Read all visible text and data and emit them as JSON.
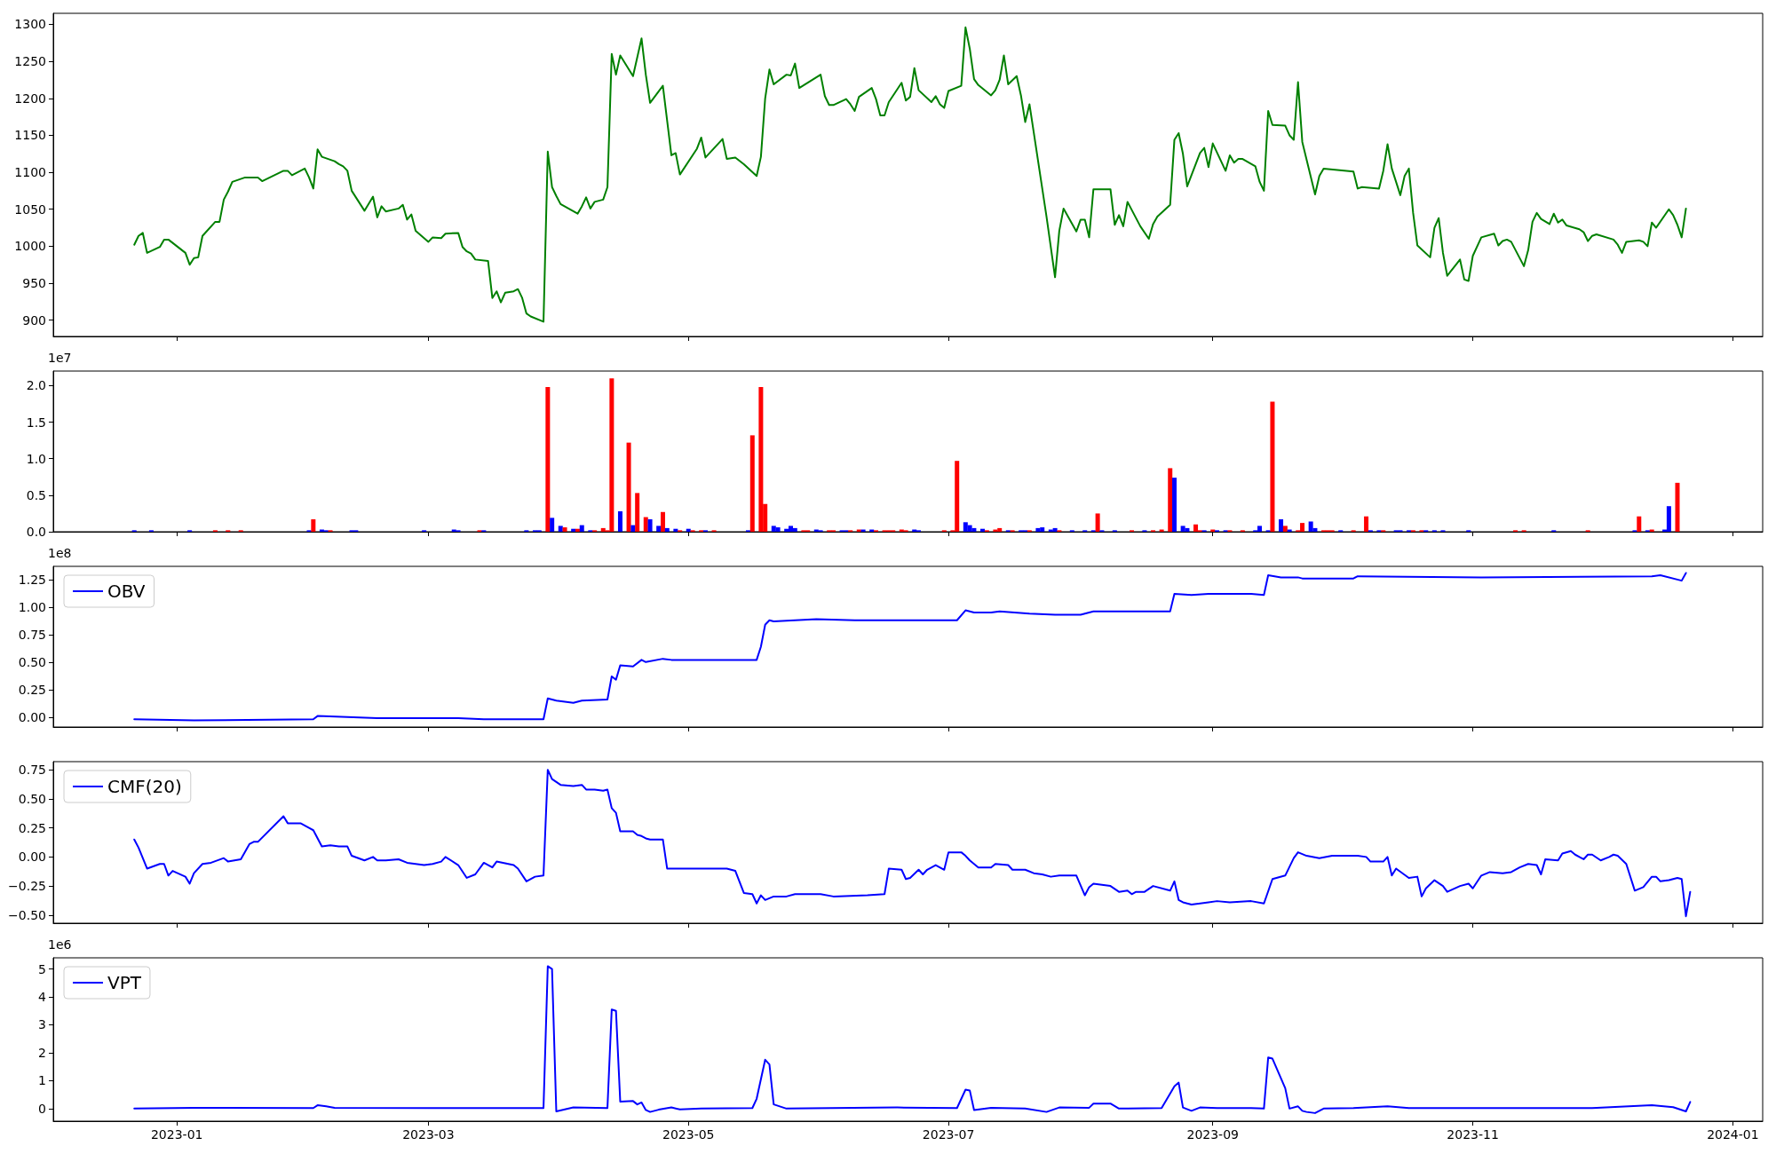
{
  "chart_data": [
    {
      "type": "line",
      "color": "#008000",
      "xlim": [
        "2022-12-03",
        "2024-01-08"
      ],
      "ylim": [
        878,
        1315
      ],
      "yticks": [
        900,
        950,
        1000,
        1050,
        1100,
        1150,
        1200,
        1250,
        1300
      ],
      "xticks": [
        {
          "value": "2023-01-01",
          "label": null
        },
        {
          "value": "2023-03-01",
          "label": null
        },
        {
          "value": "2023-05-01",
          "label": null
        },
        {
          "value": "2023-07-01",
          "label": null
        },
        {
          "value": "2023-09-01",
          "label": null
        },
        {
          "value": "2023-11-01",
          "label": null
        },
        {
          "value": "2024-01-01",
          "label": null
        }
      ],
      "tick_labels": "y",
      "x": [
        "2022-12-22",
        "2022-12-23",
        "2022-12-24",
        "2022-12-25",
        "2022-12-28",
        "2022-12-29",
        "2022-12-30",
        "2023-01-03",
        "2023-01-04",
        "2023-01-05",
        "2023-01-06",
        "2023-01-07",
        "2023-01-10",
        "2023-01-11",
        "2023-01-12",
        "2023-01-13",
        "2023-01-14",
        "2023-01-17",
        "2023-01-20",
        "2023-01-21",
        "2023-01-26",
        "2023-01-27",
        "2023-01-28",
        "2023-01-31",
        "2023-02-01",
        "2023-02-02",
        "2023-02-03",
        "2023-02-04",
        "2023-02-07",
        "2023-02-08",
        "2023-02-09",
        "2023-02-10",
        "2023-02-11",
        "2023-02-14",
        "2023-02-16",
        "2023-02-17",
        "2023-02-18",
        "2023-02-19",
        "2023-02-22",
        "2023-02-23",
        "2023-02-24",
        "2023-02-25",
        "2023-02-26",
        "2023-03-01",
        "2023-03-02",
        "2023-03-04",
        "2023-03-05",
        "2023-03-08",
        "2023-03-09",
        "2023-03-10",
        "2023-03-11",
        "2023-03-12",
        "2023-03-15",
        "2023-03-16",
        "2023-03-17",
        "2023-03-18",
        "2023-03-19",
        "2023-03-21",
        "2023-03-22",
        "2023-03-23",
        "2023-03-24",
        "2023-03-25",
        "2023-03-28",
        "2023-03-29",
        "2023-03-30",
        "2023-03-31",
        "2023-04-01",
        "2023-04-05",
        "2023-04-06",
        "2023-04-07",
        "2023-04-08",
        "2023-04-09",
        "2023-04-11",
        "2023-04-12",
        "2023-04-13",
        "2023-04-14",
        "2023-04-15",
        "2023-04-18",
        "2023-04-20",
        "2023-04-21",
        "2023-04-22",
        "2023-04-25",
        "2023-04-27",
        "2023-04-28",
        "2023-04-29",
        "2023-05-03",
        "2023-05-04",
        "2023-05-05",
        "2023-05-09",
        "2023-05-10",
        "2023-05-11",
        "2023-05-12",
        "2023-05-14",
        "2023-05-17",
        "2023-05-18",
        "2023-05-19",
        "2023-05-20",
        "2023-05-21",
        "2023-05-24",
        "2023-05-25",
        "2023-05-26",
        "2023-05-27",
        "2023-06-01",
        "2023-06-02",
        "2023-06-03",
        "2023-06-04",
        "2023-06-07",
        "2023-06-08",
        "2023-06-09",
        "2023-06-10",
        "2023-06-13",
        "2023-06-14",
        "2023-06-15",
        "2023-06-16",
        "2023-06-17",
        "2023-06-20",
        "2023-06-21",
        "2023-06-22",
        "2023-06-23",
        "2023-06-24",
        "2023-06-27",
        "2023-06-28",
        "2023-06-29",
        "2023-06-30",
        "2023-07-01",
        "2023-07-04",
        "2023-07-05",
        "2023-07-06",
        "2023-07-07",
        "2023-07-08",
        "2023-07-11",
        "2023-07-12",
        "2023-07-13",
        "2023-07-14",
        "2023-07-15",
        "2023-07-17",
        "2023-07-18",
        "2023-07-19",
        "2023-07-20",
        "2023-07-24",
        "2023-07-26",
        "2023-07-27",
        "2023-07-28",
        "2023-07-31",
        "2023-08-01",
        "2023-08-02",
        "2023-08-03",
        "2023-08-04",
        "2023-08-08",
        "2023-08-09",
        "2023-08-10",
        "2023-08-11",
        "2023-08-12",
        "2023-08-15",
        "2023-08-17",
        "2023-08-18",
        "2023-08-19",
        "2023-08-22",
        "2023-08-23",
        "2023-08-24",
        "2023-08-25",
        "2023-08-26",
        "2023-08-29",
        "2023-08-30",
        "2023-08-31",
        "2023-09-01",
        "2023-09-04",
        "2023-09-05",
        "2023-09-06",
        "2023-09-07",
        "2023-09-08",
        "2023-09-11",
        "2023-09-12",
        "2023-09-13",
        "2023-09-14",
        "2023-09-15",
        "2023-09-18",
        "2023-09-19",
        "2023-09-20",
        "2023-09-21",
        "2023-09-22",
        "2023-09-25",
        "2023-09-26",
        "2023-09-27",
        "2023-10-04",
        "2023-10-05",
        "2023-10-06",
        "2023-10-10",
        "2023-10-11",
        "2023-10-12",
        "2023-10-13",
        "2023-10-15",
        "2023-10-16",
        "2023-10-17",
        "2023-10-18",
        "2023-10-19",
        "2023-10-22",
        "2023-10-23",
        "2023-10-24",
        "2023-10-25",
        "2023-10-26",
        "2023-10-29",
        "2023-10-30",
        "2023-10-31",
        "2023-11-01",
        "2023-11-03",
        "2023-11-06",
        "2023-11-07",
        "2023-11-08",
        "2023-11-09",
        "2023-11-10",
        "2023-11-13",
        "2023-11-14",
        "2023-11-15",
        "2023-11-16",
        "2023-11-17",
        "2023-11-19",
        "2023-11-20",
        "2023-11-21",
        "2023-11-22",
        "2023-11-23",
        "2023-11-26",
        "2023-11-27",
        "2023-11-28",
        "2023-11-29",
        "2023-11-30",
        "2023-12-04",
        "2023-12-05",
        "2023-12-06",
        "2023-12-07",
        "2023-12-10",
        "2023-12-11",
        "2023-12-12",
        "2023-12-13",
        "2023-12-14",
        "2023-12-17",
        "2023-12-18",
        "2023-12-19",
        "2023-12-20",
        "2023-12-21"
      ],
      "values": [
        1002,
        1014,
        1018,
        991,
        999,
        1009,
        1009,
        991,
        975,
        984,
        985,
        1014,
        1033,
        1033,
        1063,
        1074,
        1087,
        1093,
        1093,
        1088,
        1102,
        1102,
        1096,
        1105,
        1093,
        1078,
        1131,
        1121,
        1115,
        1111,
        1108,
        1102,
        1075,
        1048,
        1067,
        1039,
        1054,
        1047,
        1051,
        1056,
        1036,
        1043,
        1021,
        1006,
        1012,
        1011,
        1017,
        1018,
        999,
        993,
        990,
        982,
        980,
        930,
        939,
        924,
        937,
        939,
        942,
        930,
        909,
        905,
        898,
        1128,
        1080,
        1068,
        1057,
        1044,
        1054,
        1066,
        1051,
        1060,
        1063,
        1080,
        1260,
        1232,
        1258,
        1230,
        1281,
        1232,
        1194,
        1217,
        1123,
        1126,
        1097,
        1132,
        1147,
        1120,
        1145,
        1118,
        1119,
        1120,
        1111,
        1095,
        1121,
        1200,
        1239,
        1219,
        1232,
        1231,
        1247,
        1214,
        1232,
        1203,
        1191,
        1191,
        1199,
        1192,
        1183,
        1202,
        1214,
        1199,
        1177,
        1177,
        1195,
        1221,
        1197,
        1202,
        1241,
        1211,
        1195,
        1203,
        1192,
        1187,
        1210,
        1217,
        1296,
        1267,
        1226,
        1218,
        1204,
        1211,
        1225,
        1258,
        1219,
        1230,
        1204,
        1168,
        1192,
        1040,
        958,
        1021,
        1051,
        1020,
        1036,
        1036,
        1012,
        1077,
        1077,
        1029,
        1042,
        1027,
        1060,
        1027,
        1010,
        1030,
        1040,
        1056,
        1144,
        1153,
        1125,
        1081,
        1126,
        1133,
        1107,
        1139,
        1102,
        1123,
        1113,
        1118,
        1118,
        1108,
        1087,
        1075,
        1183,
        1164,
        1163,
        1150,
        1144,
        1222,
        1141,
        1070,
        1095,
        1105,
        1101,
        1078,
        1080,
        1078,
        1102,
        1138,
        1105,
        1069,
        1095,
        1105,
        1045,
        1001,
        985,
        1025,
        1038,
        991,
        960,
        982,
        955,
        953,
        987,
        1012,
        1017,
        1001,
        1007,
        1009,
        1006,
        973,
        995,
        1033,
        1045,
        1037,
        1030,
        1044,
        1032,
        1036,
        1028,
        1023,
        1019,
        1007,
        1014,
        1016,
        1009,
        1002,
        991,
        1006,
        1008,
        1006,
        1000,
        1032,
        1025,
        1050,
        1042,
        1029,
        1012,
        1051
      ]
    },
    {
      "type": "bar",
      "xlim": [
        "2022-12-03",
        "2024-01-08"
      ],
      "ylim": [
        0,
        2.2
      ],
      "yticks": [
        {
          "value": 0,
          "label": "0.0"
        },
        {
          "value": 0.5,
          "label": "0.5"
        },
        {
          "value": 1,
          "label": "1.0"
        },
        {
          "value": 1.5,
          "label": "1.5"
        },
        {
          "value": 2,
          "label": "2.0"
        }
      ],
      "xticks": [
        {
          "value": "2023-01-01",
          "label": null
        },
        {
          "value": "2023-03-01",
          "label": null
        },
        {
          "value": "2023-05-01",
          "label": null
        },
        {
          "value": "2023-07-01",
          "label": null
        },
        {
          "value": "2023-09-01",
          "label": null
        },
        {
          "value": "2023-11-01",
          "label": null
        },
        {
          "value": "2024-01-01",
          "label": null
        }
      ],
      "tick_labels": "y",
      "annotations": [
        "1e7"
      ],
      "x": [
        "2022-12-22",
        "2022-12-26",
        "2023-01-04",
        "2023-01-10",
        "2023-01-13",
        "2023-01-16",
        "2023-02-01",
        "2023-02-02",
        "2023-02-04",
        "2023-02-05",
        "2023-02-06",
        "2023-02-11",
        "2023-02-12",
        "2023-02-28",
        "2023-03-07",
        "2023-03-08",
        "2023-03-13",
        "2023-03-14",
        "2023-03-24",
        "2023-03-26",
        "2023-03-27",
        "2023-03-29",
        "2023-03-30",
        "2023-04-01",
        "2023-04-02",
        "2023-04-04",
        "2023-04-05",
        "2023-04-06",
        "2023-04-08",
        "2023-04-09",
        "2023-04-11",
        "2023-04-12",
        "2023-04-13",
        "2023-04-15",
        "2023-04-17",
        "2023-04-18",
        "2023-04-19",
        "2023-04-21",
        "2023-04-22",
        "2023-04-24",
        "2023-04-25",
        "2023-04-26",
        "2023-04-28",
        "2023-04-29",
        "2023-05-01",
        "2023-05-02",
        "2023-05-04",
        "2023-05-05",
        "2023-05-07",
        "2023-05-15",
        "2023-05-16",
        "2023-05-18",
        "2023-05-19",
        "2023-05-21",
        "2023-05-22",
        "2023-05-24",
        "2023-05-25",
        "2023-05-26",
        "2023-05-28",
        "2023-05-29",
        "2023-05-31",
        "2023-06-01",
        "2023-06-03",
        "2023-06-04",
        "2023-06-06",
        "2023-06-07",
        "2023-06-08",
        "2023-06-10",
        "2023-06-11",
        "2023-06-13",
        "2023-06-14",
        "2023-06-16",
        "2023-06-17",
        "2023-06-18",
        "2023-06-20",
        "2023-06-21",
        "2023-06-23",
        "2023-06-24",
        "2023-06-30",
        "2023-07-02",
        "2023-07-03",
        "2023-07-05",
        "2023-07-06",
        "2023-07-07",
        "2023-07-09",
        "2023-07-10",
        "2023-07-12",
        "2023-07-13",
        "2023-07-15",
        "2023-07-16",
        "2023-07-18",
        "2023-07-19",
        "2023-07-20",
        "2023-07-22",
        "2023-07-23",
        "2023-07-25",
        "2023-07-26",
        "2023-07-27",
        "2023-07-30",
        "2023-08-02",
        "2023-08-04",
        "2023-08-05",
        "2023-08-06",
        "2023-08-09",
        "2023-08-13",
        "2023-08-16",
        "2023-08-18",
        "2023-08-20",
        "2023-08-22",
        "2023-08-23",
        "2023-08-25",
        "2023-08-26",
        "2023-08-28",
        "2023-08-29",
        "2023-08-30",
        "2023-09-01",
        "2023-09-02",
        "2023-09-04",
        "2023-09-05",
        "2023-09-08",
        "2023-09-11",
        "2023-09-12",
        "2023-09-14",
        "2023-09-15",
        "2023-09-17",
        "2023-09-18",
        "2023-09-19",
        "2023-09-21",
        "2023-09-22",
        "2023-09-24",
        "2023-09-25",
        "2023-09-27",
        "2023-09-28",
        "2023-09-29",
        "2023-10-01",
        "2023-10-04",
        "2023-10-07",
        "2023-10-08",
        "2023-10-10",
        "2023-10-11",
        "2023-10-14",
        "2023-10-15",
        "2023-10-17",
        "2023-10-18",
        "2023-10-20",
        "2023-10-21",
        "2023-10-23",
        "2023-10-25",
        "2023-10-31",
        "2023-11-11",
        "2023-11-13",
        "2023-11-20",
        "2023-11-28",
        "2023-12-09",
        "2023-12-10",
        "2023-12-12",
        "2023-12-13",
        "2023-12-16",
        "2023-12-17",
        "2023-12-19"
      ],
      "values": [
        0.02,
        0.02,
        0.02,
        0.02,
        0.02,
        0.02,
        0.02,
        0.17,
        0.03,
        0.02,
        0.02,
        0.02,
        0.02,
        0.02,
        0.03,
        0.02,
        0.02,
        0.02,
        0.02,
        0.02,
        0.02,
        1.98,
        0.19,
        0.08,
        0.06,
        0.04,
        0.04,
        0.09,
        0.02,
        0.02,
        0.05,
        0.02,
        2.1,
        0.28,
        1.22,
        0.09,
        0.53,
        0.2,
        0.17,
        0.08,
        0.27,
        0.05,
        0.04,
        0.02,
        0.04,
        0.02,
        0.02,
        0.02,
        0.02,
        0.02,
        1.32,
        1.98,
        0.38,
        0.08,
        0.06,
        0.04,
        0.08,
        0.05,
        0.02,
        0.02,
        0.03,
        0.02,
        0.02,
        0.02,
        0.02,
        0.02,
        0.02,
        0.03,
        0.03,
        0.03,
        0.02,
        0.02,
        0.02,
        0.02,
        0.03,
        0.02,
        0.03,
        0.02,
        0.02,
        0.02,
        0.97,
        0.13,
        0.09,
        0.05,
        0.04,
        0.02,
        0.03,
        0.05,
        0.02,
        0.02,
        0.02,
        0.02,
        0.02,
        0.05,
        0.06,
        0.03,
        0.05,
        0.02,
        0.02,
        0.02,
        0.02,
        0.25,
        0.02,
        0.02,
        0.02,
        0.02,
        0.02,
        0.03,
        0.87,
        0.74,
        0.08,
        0.05,
        0.1,
        0.02,
        0.02,
        0.03,
        0.02,
        0.02,
        0.02,
        0.02,
        0.02,
        0.08,
        0.02,
        1.78,
        0.17,
        0.08,
        0.03,
        0.02,
        0.12,
        0.14,
        0.05,
        0.02,
        0.02,
        0.02,
        0.02,
        0.02,
        0.21,
        0.02,
        0.02,
        0.02,
        0.02,
        0.02,
        0.02,
        0.02,
        0.02,
        0.02,
        0.02,
        0.02,
        0.02,
        0.02,
        0.02,
        0.02,
        0.02,
        0.02,
        0.21,
        0.02,
        0.03,
        0.03,
        0.35,
        0.67
      ],
      "colors": [
        "#0000ff",
        "#0000ff",
        "#0000ff",
        "#ff0000",
        "#ff0000",
        "#ff0000",
        "#0000ff",
        "#ff0000",
        "#0000ff",
        "#0000ff",
        "#ff0000",
        "#0000ff",
        "#0000ff",
        "#0000ff",
        "#0000ff",
        "#0000ff",
        "#ff0000",
        "#0000ff",
        "#0000ff",
        "#0000ff",
        "#0000ff",
        "#ff0000",
        "#0000ff",
        "#0000ff",
        "#ff0000",
        "#0000ff",
        "#ff0000",
        "#0000ff",
        "#0000ff",
        "#ff0000",
        "#ff0000",
        "#ff0000",
        "#ff0000",
        "#0000ff",
        "#ff0000",
        "#0000ff",
        "#ff0000",
        "#ff0000",
        "#0000ff",
        "#0000ff",
        "#ff0000",
        "#0000ff",
        "#0000ff",
        "#ff0000",
        "#0000ff",
        "#ff0000",
        "#ff0000",
        "#0000ff",
        "#ff0000",
        "#0000ff",
        "#ff0000",
        "#ff0000",
        "#ff0000",
        "#0000ff",
        "#0000ff",
        "#0000ff",
        "#0000ff",
        "#0000ff",
        "#ff0000",
        "#ff0000",
        "#0000ff",
        "#0000ff",
        "#ff0000",
        "#ff0000",
        "#0000ff",
        "#0000ff",
        "#ff0000",
        "#ff0000",
        "#0000ff",
        "#0000ff",
        "#ff0000",
        "#ff0000",
        "#ff0000",
        "#ff0000",
        "#ff0000",
        "#ff0000",
        "#0000ff",
        "#0000ff",
        "#ff0000",
        "#ff0000",
        "#ff0000",
        "#0000ff",
        "#0000ff",
        "#0000ff",
        "#0000ff",
        "#ff0000",
        "#ff0000",
        "#ff0000",
        "#0000ff",
        "#ff0000",
        "#0000ff",
        "#0000ff",
        "#ff0000",
        "#0000ff",
        "#0000ff",
        "#0000ff",
        "#0000ff",
        "#ff0000",
        "#0000ff",
        "#0000ff",
        "#0000ff",
        "#ff0000",
        "#0000ff",
        "#0000ff",
        "#ff0000",
        "#0000ff",
        "#ff0000",
        "#ff0000",
        "#ff0000",
        "#0000ff",
        "#0000ff",
        "#0000ff",
        "#ff0000",
        "#ff0000",
        "#0000ff",
        "#ff0000",
        "#0000ff",
        "#0000ff",
        "#ff0000",
        "#ff0000",
        "#0000ff",
        "#0000ff",
        "#0000ff",
        "#ff0000",
        "#0000ff",
        "#ff0000",
        "#0000ff",
        "#ff0000",
        "#ff0000",
        "#0000ff",
        "#0000ff",
        "#ff0000",
        "#ff0000",
        "#ff0000",
        "#0000ff",
        "#ff0000",
        "#ff0000",
        "#0000ff",
        "#0000ff",
        "#ff0000",
        "#0000ff",
        "#0000ff",
        "#0000ff",
        "#ff0000",
        "#ff0000",
        "#0000ff",
        "#0000ff",
        "#0000ff",
        "#0000ff",
        "#ff0000",
        "#ff0000",
        "#0000ff",
        "#ff0000",
        "#0000ff",
        "#ff0000",
        "#0000ff",
        "#ff0000",
        "#0000ff",
        "#0000ff",
        "#ff0000"
      ]
    },
    {
      "type": "line",
      "xlim": [
        "2022-12-03",
        "2024-01-08"
      ],
      "ylim": [
        -0.09,
        1.37
      ],
      "yticks": [
        {
          "value": 0,
          "label": "0.00"
        },
        {
          "value": 0.25,
          "label": "0.25"
        },
        {
          "value": 0.5,
          "label": "0.50"
        },
        {
          "value": 0.75,
          "label": "0.75"
        },
        {
          "value": 1,
          "label": "1.00"
        },
        {
          "value": 1.25,
          "label": "1.25"
        }
      ],
      "xticks": [
        {
          "value": "2023-01-01",
          "label": null
        },
        {
          "value": "2023-03-01",
          "label": null
        },
        {
          "value": "2023-05-01",
          "label": null
        },
        {
          "value": "2023-07-01",
          "label": null
        },
        {
          "value": "2023-09-01",
          "label": null
        },
        {
          "value": "2023-11-01",
          "label": null
        },
        {
          "value": "2024-01-01",
          "label": null
        }
      ],
      "tick_labels": "y",
      "annotations": [
        "1e8"
      ],
      "legend": "top left",
      "x": [
        "2022-12-22",
        "2023-01-05",
        "2023-02-02",
        "2023-02-03",
        "2023-02-17",
        "2023-03-08",
        "2023-03-14",
        "2023-03-28",
        "2023-03-29",
        "2023-03-31",
        "2023-04-04",
        "2023-04-06",
        "2023-04-12",
        "2023-04-13",
        "2023-04-14",
        "2023-04-15",
        "2023-04-18",
        "2023-04-20",
        "2023-04-21",
        "2023-04-25",
        "2023-04-27",
        "2023-05-17",
        "2023-05-18",
        "2023-05-19",
        "2023-05-20",
        "2023-05-21",
        "2023-05-31",
        "2023-06-09",
        "2023-07-03",
        "2023-07-05",
        "2023-07-07",
        "2023-07-11",
        "2023-07-13",
        "2023-07-20",
        "2023-07-26",
        "2023-08-01",
        "2023-08-04",
        "2023-08-15",
        "2023-08-22",
        "2023-08-23",
        "2023-08-27",
        "2023-08-31",
        "2023-09-10",
        "2023-09-13",
        "2023-09-14",
        "2023-09-17",
        "2023-09-21",
        "2023-09-22",
        "2023-10-04",
        "2023-10-05",
        "2023-11-03",
        "2023-12-13",
        "2023-12-15",
        "2023-12-20",
        "2023-12-21"
      ],
      "series": [
        {
          "name": "OBV",
          "color": "#0000ff",
          "values": [
            -0.02,
            -0.03,
            -0.02,
            0.01,
            -0.01,
            -0.01,
            -0.02,
            -0.02,
            0.17,
            0.15,
            0.13,
            0.15,
            0.16,
            0.37,
            0.34,
            0.47,
            0.46,
            0.52,
            0.5,
            0.53,
            0.52,
            0.52,
            0.64,
            0.84,
            0.88,
            0.87,
            0.89,
            0.88,
            0.88,
            0.97,
            0.95,
            0.95,
            0.96,
            0.94,
            0.93,
            0.93,
            0.96,
            0.96,
            0.96,
            1.12,
            1.11,
            1.12,
            1.12,
            1.11,
            1.29,
            1.27,
            1.27,
            1.26,
            1.26,
            1.28,
            1.27,
            1.28,
            1.29,
            1.24,
            1.31
          ]
        }
      ]
    },
    {
      "type": "line",
      "xlim": [
        "2022-12-03",
        "2024-01-08"
      ],
      "ylim": [
        -0.57,
        0.82
      ],
      "yticks": [
        {
          "value": -0.5,
          "label": "−0.50"
        },
        {
          "value": -0.25,
          "label": "−0.25"
        },
        {
          "value": 0,
          "label": "0.00"
        },
        {
          "value": 0.25,
          "label": "0.25"
        },
        {
          "value": 0.5,
          "label": "0.50"
        },
        {
          "value": 0.75,
          "label": "0.75"
        }
      ],
      "xticks": [
        {
          "value": "2023-01-01",
          "label": null
        },
        {
          "value": "2023-03-01",
          "label": null
        },
        {
          "value": "2023-05-01",
          "label": null
        },
        {
          "value": "2023-07-01",
          "label": null
        },
        {
          "value": "2023-09-01",
          "label": null
        },
        {
          "value": "2023-11-01",
          "label": null
        },
        {
          "value": "2024-01-01",
          "label": null
        }
      ],
      "tick_labels": "y",
      "legend": "top left",
      "x": [
        "2022-12-22",
        "2022-12-23",
        "2022-12-25",
        "2022-12-28",
        "2022-12-29",
        "2022-12-30",
        "2022-12-31",
        "2023-01-03",
        "2023-01-04",
        "2023-01-05",
        "2023-01-07",
        "2023-01-09",
        "2023-01-12",
        "2023-01-13",
        "2023-01-16",
        "2023-01-18",
        "2023-01-19",
        "2023-01-20",
        "2023-01-26",
        "2023-01-27",
        "2023-01-30",
        "2023-02-01",
        "2023-02-02",
        "2023-02-04",
        "2023-02-06",
        "2023-02-08",
        "2023-02-10",
        "2023-02-11",
        "2023-02-14",
        "2023-02-16",
        "2023-02-17",
        "2023-02-19",
        "2023-02-22",
        "2023-02-24",
        "2023-02-28",
        "2023-03-02",
        "2023-03-04",
        "2023-03-05",
        "2023-03-08",
        "2023-03-10",
        "2023-03-12",
        "2023-03-14",
        "2023-03-16",
        "2023-03-17",
        "2023-03-21",
        "2023-03-22",
        "2023-03-24",
        "2023-03-26",
        "2023-03-28",
        "2023-03-29",
        "2023-03-30",
        "2023-04-01",
        "2023-04-04",
        "2023-04-06",
        "2023-04-07",
        "2023-04-09",
        "2023-04-11",
        "2023-04-12",
        "2023-04-13",
        "2023-04-14",
        "2023-04-15",
        "2023-04-18",
        "2023-04-19",
        "2023-04-20",
        "2023-04-21",
        "2023-04-22",
        "2023-04-25",
        "2023-04-26",
        "2023-04-29",
        "2023-05-05",
        "2023-05-10",
        "2023-05-12",
        "2023-05-14",
        "2023-05-16",
        "2023-05-17",
        "2023-05-18",
        "2023-05-19",
        "2023-05-21",
        "2023-05-24",
        "2023-05-26",
        "2023-06-01",
        "2023-06-04",
        "2023-06-12",
        "2023-06-16",
        "2023-06-17",
        "2023-06-20",
        "2023-06-21",
        "2023-06-22",
        "2023-06-24",
        "2023-06-25",
        "2023-06-26",
        "2023-06-28",
        "2023-06-30",
        "2023-07-01",
        "2023-07-04",
        "2023-07-05",
        "2023-07-06",
        "2023-07-08",
        "2023-07-11",
        "2023-07-12",
        "2023-07-15",
        "2023-07-16",
        "2023-07-19",
        "2023-07-21",
        "2023-07-23",
        "2023-07-25",
        "2023-07-27",
        "2023-07-31",
        "2023-08-02",
        "2023-08-03",
        "2023-08-04",
        "2023-08-08",
        "2023-08-10",
        "2023-08-12",
        "2023-08-13",
        "2023-08-14",
        "2023-08-16",
        "2023-08-18",
        "2023-08-22",
        "2023-08-23",
        "2023-08-24",
        "2023-08-25",
        "2023-08-27",
        "2023-08-31",
        "2023-09-02",
        "2023-09-05",
        "2023-09-10",
        "2023-09-13",
        "2023-09-15",
        "2023-09-18",
        "2023-09-20",
        "2023-09-21",
        "2023-09-23",
        "2023-09-26",
        "2023-09-29",
        "2023-10-05",
        "2023-10-07",
        "2023-10-08",
        "2023-10-11",
        "2023-10-12",
        "2023-10-13",
        "2023-10-14",
        "2023-10-17",
        "2023-10-19",
        "2023-10-20",
        "2023-10-21",
        "2023-10-23",
        "2023-10-25",
        "2023-10-26",
        "2023-10-29",
        "2023-10-31",
        "2023-11-01",
        "2023-11-03",
        "2023-11-05",
        "2023-11-08",
        "2023-11-10",
        "2023-11-12",
        "2023-11-14",
        "2023-11-16",
        "2023-11-17",
        "2023-11-18",
        "2023-11-21",
        "2023-11-22",
        "2023-11-24",
        "2023-11-25",
        "2023-11-27",
        "2023-11-28",
        "2023-11-29",
        "2023-12-01",
        "2023-12-03",
        "2023-12-04",
        "2023-12-05",
        "2023-12-07",
        "2023-12-09",
        "2023-12-11",
        "2023-12-13",
        "2023-12-14",
        "2023-12-15",
        "2023-12-17",
        "2023-12-19",
        "2023-12-20",
        "2023-12-21",
        "2023-12-22"
      ],
      "series": [
        {
          "name": "CMF(20)",
          "color": "#0000ff",
          "values": [
            0.15,
            0.08,
            -0.1,
            -0.06,
            -0.06,
            -0.16,
            -0.12,
            -0.17,
            -0.23,
            -0.14,
            -0.06,
            -0.05,
            -0.01,
            -0.04,
            -0.02,
            0.11,
            0.13,
            0.13,
            0.35,
            0.29,
            0.29,
            0.25,
            0.23,
            0.09,
            0.1,
            0.09,
            0.09,
            0.01,
            -0.03,
            0,
            -0.03,
            -0.03,
            -0.02,
            -0.05,
            -0.07,
            -0.06,
            -0.04,
            0,
            -0.07,
            -0.18,
            -0.15,
            -0.05,
            -0.09,
            -0.04,
            -0.07,
            -0.1,
            -0.21,
            -0.17,
            -0.16,
            0.75,
            0.67,
            0.62,
            0.61,
            0.62,
            0.58,
            0.58,
            0.57,
            0.58,
            0.42,
            0.38,
            0.22,
            0.22,
            0.19,
            0.18,
            0.16,
            0.15,
            0.15,
            -0.1,
            -0.1,
            -0.1,
            -0.1,
            -0.12,
            -0.31,
            -0.32,
            -0.4,
            -0.33,
            -0.37,
            -0.34,
            -0.34,
            -0.32,
            -0.32,
            -0.34,
            -0.33,
            -0.32,
            -0.1,
            -0.11,
            -0.19,
            -0.18,
            -0.11,
            -0.15,
            -0.11,
            -0.07,
            -0.11,
            0.04,
            0.04,
            0.01,
            -0.03,
            -0.09,
            -0.09,
            -0.06,
            -0.07,
            -0.11,
            -0.11,
            -0.14,
            -0.15,
            -0.17,
            -0.16,
            -0.16,
            -0.33,
            -0.26,
            -0.23,
            -0.25,
            -0.3,
            -0.29,
            -0.32,
            -0.3,
            -0.3,
            -0.25,
            -0.29,
            -0.21,
            -0.37,
            -0.39,
            -0.41,
            -0.39,
            -0.38,
            -0.39,
            -0.38,
            -0.4,
            -0.19,
            -0.16,
            -0.01,
            0.04,
            0.01,
            -0.01,
            0.01,
            0.01,
            0,
            -0.04,
            -0.04,
            0,
            -0.16,
            -0.1,
            -0.18,
            -0.17,
            -0.34,
            -0.27,
            -0.2,
            -0.25,
            -0.3,
            -0.25,
            -0.23,
            -0.27,
            -0.16,
            -0.13,
            -0.14,
            -0.13,
            -0.09,
            -0.06,
            -0.07,
            -0.15,
            -0.02,
            -0.03,
            0.03,
            0.05,
            0.02,
            -0.02,
            0.02,
            0.02,
            -0.03,
            0,
            0.02,
            0.01,
            -0.06,
            -0.29,
            -0.26,
            -0.17,
            -0.17,
            -0.21,
            -0.2,
            -0.18,
            -0.19,
            -0.51,
            -0.3
          ]
        }
      ]
    },
    {
      "type": "line",
      "xlim": [
        "2022-12-03",
        "2024-01-08"
      ],
      "ylim": [
        -0.45,
        5.4
      ],
      "yticks": [
        0,
        1,
        2,
        3,
        4,
        5
      ],
      "xticks": [
        {
          "value": "2023-01-01",
          "label": "2023-01"
        },
        {
          "value": "2023-03-01",
          "label": "2023-03"
        },
        {
          "value": "2023-05-01",
          "label": "2023-05"
        },
        {
          "value": "2023-07-01",
          "label": "2023-07"
        },
        {
          "value": "2023-09-01",
          "label": "2023-09"
        },
        {
          "value": "2023-11-01",
          "label": "2023-11"
        },
        {
          "value": "2024-01-01",
          "label": "2024-01"
        }
      ],
      "annotations": [
        "1e6"
      ],
      "legend": "top left",
      "x": [
        "2022-12-22",
        "2023-01-05",
        "2023-02-02",
        "2023-02-03",
        "2023-02-05",
        "2023-02-07",
        "2023-03-02",
        "2023-03-28",
        "2023-03-29",
        "2023-03-30",
        "2023-03-31",
        "2023-04-04",
        "2023-04-12",
        "2023-04-13",
        "2023-04-14",
        "2023-04-15",
        "2023-04-18",
        "2023-04-19",
        "2023-04-20",
        "2023-04-21",
        "2023-04-22",
        "2023-04-24",
        "2023-04-27",
        "2023-04-29",
        "2023-05-04",
        "2023-05-16",
        "2023-05-17",
        "2023-05-19",
        "2023-05-20",
        "2023-05-21",
        "2023-05-24",
        "2023-06-19",
        "2023-07-03",
        "2023-07-05",
        "2023-07-06",
        "2023-07-07",
        "2023-07-11",
        "2023-07-19",
        "2023-07-24",
        "2023-07-27",
        "2023-08-03",
        "2023-08-04",
        "2023-08-08",
        "2023-08-10",
        "2023-08-20",
        "2023-08-23",
        "2023-08-24",
        "2023-08-25",
        "2023-08-27",
        "2023-08-29",
        "2023-09-02",
        "2023-09-10",
        "2023-09-13",
        "2023-09-14",
        "2023-09-15",
        "2023-09-18",
        "2023-09-19",
        "2023-09-21",
        "2023-09-22",
        "2023-09-23",
        "2023-09-25",
        "2023-09-27",
        "2023-10-04",
        "2023-10-12",
        "2023-10-17",
        "2023-10-22",
        "2023-11-03",
        "2023-11-29",
        "2023-12-13",
        "2023-12-18",
        "2023-12-21",
        "2023-12-22"
      ],
      "series": [
        {
          "name": "VPT",
          "color": "#0000ff",
          "values": [
            0,
            0.03,
            0.02,
            0.12,
            0.08,
            0.03,
            0.02,
            0.02,
            5.1,
            5,
            -0.1,
            0.04,
            0.02,
            3.55,
            3.5,
            0.25,
            0.27,
            0.15,
            0.22,
            -0.05,
            -0.12,
            -0.04,
            0.04,
            -0.03,
            0,
            0.02,
            0.35,
            1.75,
            1.58,
            0.15,
            0,
            0.04,
            0.02,
            0.68,
            0.65,
            -0.05,
            0.03,
            0,
            -0.12,
            0.04,
            0.03,
            0.18,
            0.18,
            0,
            0.02,
            0.8,
            0.93,
            0.04,
            -0.08,
            0.04,
            0.02,
            0.02,
            0,
            1.83,
            1.79,
            0.73,
            0,
            0.08,
            -0.08,
            -0.12,
            -0.16,
            0,
            0.02,
            0.08,
            0.02,
            0.02,
            0.02,
            0.02,
            0.12,
            0.05,
            -0.1,
            0.24
          ]
        }
      ]
    }
  ]
}
